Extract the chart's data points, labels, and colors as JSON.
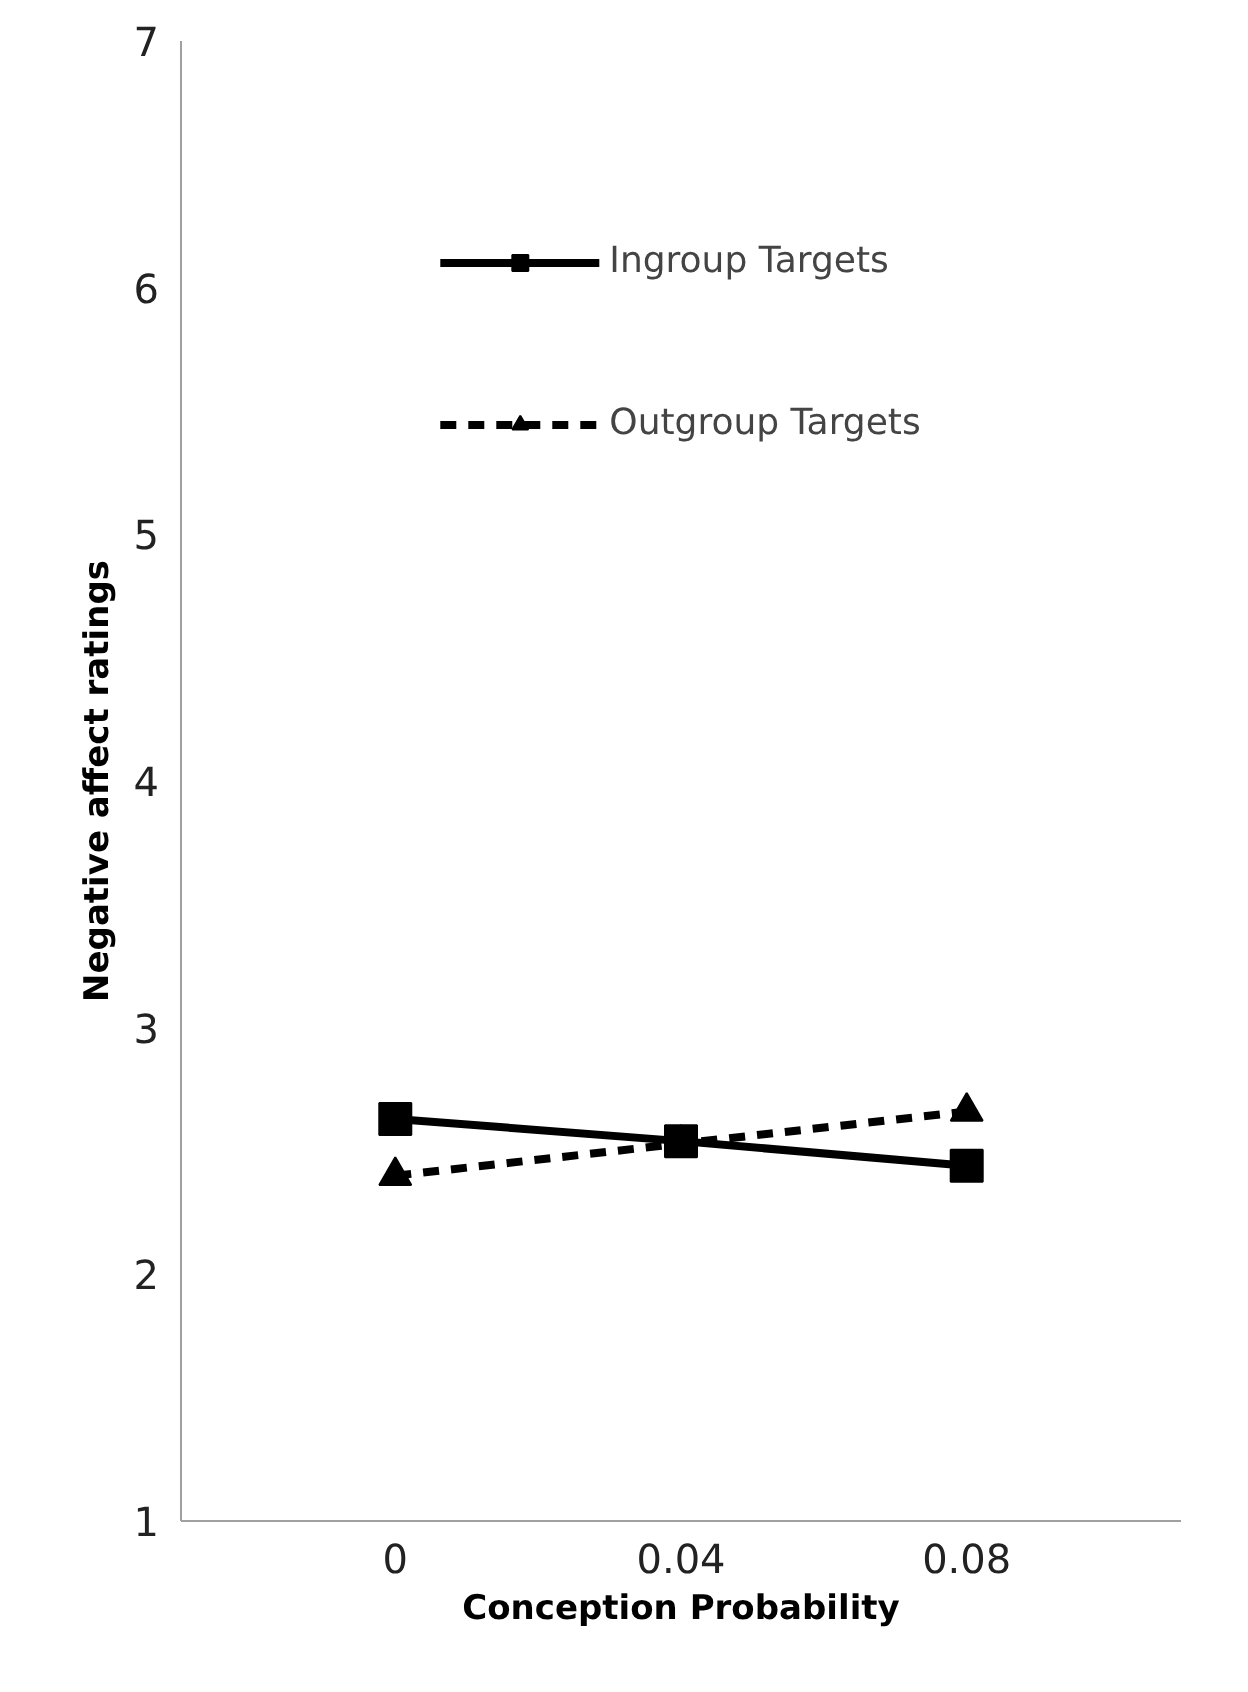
{
  "chart_data": {
    "type": "line",
    "xlabel": "Conception Probability",
    "ylabel": "Negative affect ratings",
    "categories": [
      "0",
      "0.04",
      "0.08"
    ],
    "series": [
      {
        "name": "Ingroup Targets",
        "color": "#000000",
        "values": [
          2.63,
          2.54,
          2.44
        ],
        "marker": "square",
        "line_style": "solid"
      },
      {
        "name": "Outgroup Targets",
        "color": "#000000",
        "values": [
          2.4,
          2.53,
          2.66
        ],
        "marker": "triangle",
        "line_style": "dashed"
      }
    ],
    "ylim": [
      1,
      7
    ],
    "yticks": [
      1,
      2,
      3,
      4,
      5,
      6,
      7
    ],
    "grid": false,
    "legend": "top"
  }
}
